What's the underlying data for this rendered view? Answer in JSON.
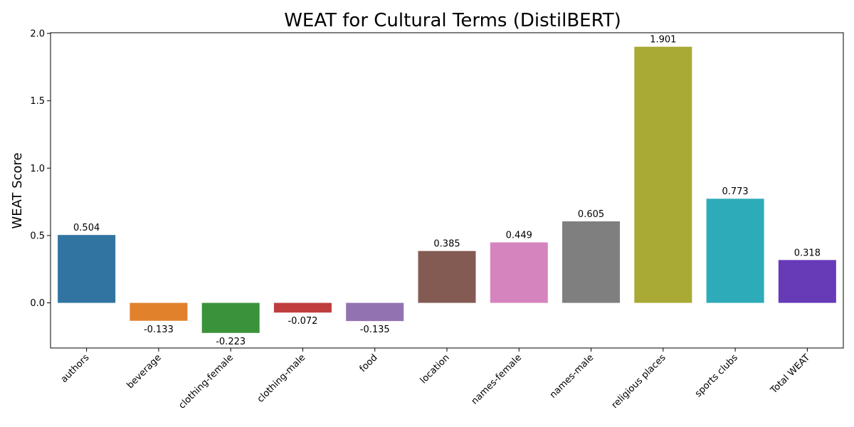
{
  "chart_data": {
    "type": "bar",
    "title": "WEAT for Cultural Terms (DistilBERT)",
    "xlabel": "",
    "ylabel": "WEAT Score",
    "ylim": [
      -0.335,
      2.005
    ],
    "yticks": [
      0.0,
      0.5,
      1.0,
      1.5,
      2.0
    ],
    "ytick_labels": [
      "0.0",
      "0.5",
      "1.0",
      "1.5",
      "2.0"
    ],
    "categories": [
      "authors",
      "beverage",
      "clothing-female",
      "clothing-male",
      "food",
      "location",
      "names-female",
      "names-male",
      "religious places",
      "sports clubs",
      "Total WEAT"
    ],
    "values": [
      0.504,
      -0.133,
      -0.223,
      -0.072,
      -0.135,
      0.385,
      0.449,
      0.605,
      1.901,
      0.773,
      0.318
    ],
    "value_labels": [
      "0.504",
      "-0.133",
      "-0.223",
      "-0.072",
      "-0.135",
      "0.385",
      "0.449",
      "0.605",
      "1.901",
      "0.773",
      "0.318"
    ],
    "colors": [
      "#3274a1",
      "#e1812c",
      "#3a923a",
      "#c03d3e",
      "#9372b2",
      "#845b53",
      "#d684bd",
      "#7f7f7f",
      "#a9aa35",
      "#2eabb8",
      "#673ab7"
    ],
    "grid": false,
    "legend": "none"
  }
}
